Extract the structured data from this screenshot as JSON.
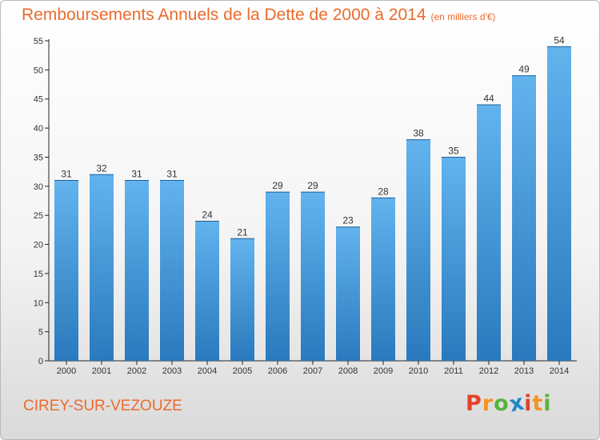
{
  "header": {
    "title": "Remboursements Annuels de la Dette de 2000 à 2014",
    "unit": "(en milliers d'€)"
  },
  "footer": {
    "commune": "CIREY-SUR-VEZOUZE",
    "logo_letters": [
      "P",
      "r",
      "o",
      "x",
      "i",
      "t",
      "i"
    ]
  },
  "colors": {
    "title": "#ec6a2c",
    "bar_top": "#62b3ee",
    "bar_bottom": "#2a79bd",
    "logo": [
      "#e5422a",
      "#f39322",
      "#58b33f",
      "#1f87c8",
      "#e5422a",
      "#f39322",
      "#58b33f"
    ]
  },
  "chart_data": {
    "type": "bar",
    "categories": [
      "2000",
      "2001",
      "2002",
      "2003",
      "2004",
      "2005",
      "2006",
      "2007",
      "2008",
      "2009",
      "2010",
      "2011",
      "2012",
      "2013",
      "2014"
    ],
    "values": [
      31,
      32,
      31,
      31,
      24,
      21,
      29,
      29,
      23,
      28,
      38,
      35,
      44,
      49,
      54
    ],
    "data_labels": [
      "31",
      "32",
      "31",
      "31",
      "24",
      "21",
      "29",
      "29",
      "23",
      "28",
      "38",
      "35",
      "44",
      "49",
      "54"
    ],
    "y_ticks": [
      "0",
      "5",
      "10",
      "15",
      "20",
      "25",
      "30",
      "35",
      "40",
      "45",
      "50",
      "55"
    ],
    "ylim": [
      0,
      55
    ],
    "grid": false,
    "legend": "none"
  }
}
